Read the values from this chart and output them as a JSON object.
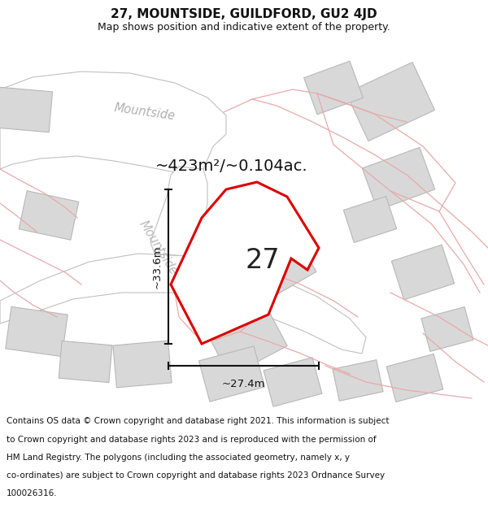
{
  "title_line1": "27, MOUNTSIDE, GUILDFORD, GU2 4JD",
  "title_line2": "Map shows position and indicative extent of the property.",
  "area_text": "~423m²/~0.104ac.",
  "number_label": "27",
  "width_label": "~27.4m",
  "height_label": "~33.6m",
  "footer_lines": [
    "Contains OS data © Crown copyright and database right 2021. This information is subject",
    "to Crown copyright and database rights 2023 and is reproduced with the permission of",
    "HM Land Registry. The polygons (including the associated geometry, namely x, y",
    "co-ordinates) are subject to Crown copyright and database rights 2023 Ordnance Survey",
    "100026316."
  ],
  "map_bg": "#f7f5f5",
  "road_color": "#ffffff",
  "road_edge": "#c0c0c0",
  "building_color": "#d8d8d8",
  "building_edge": "#b8b8b8",
  "red_poly_color": "#dd0000",
  "pink_color": "#e8aaaa",
  "street_color": "#c0c0c0",
  "title_fontsize": 11,
  "subtitle_fontsize": 9,
  "footer_fontsize": 7.5,
  "area_fontsize": 14,
  "number_fontsize": 24,
  "dim_fontsize": 9.5
}
